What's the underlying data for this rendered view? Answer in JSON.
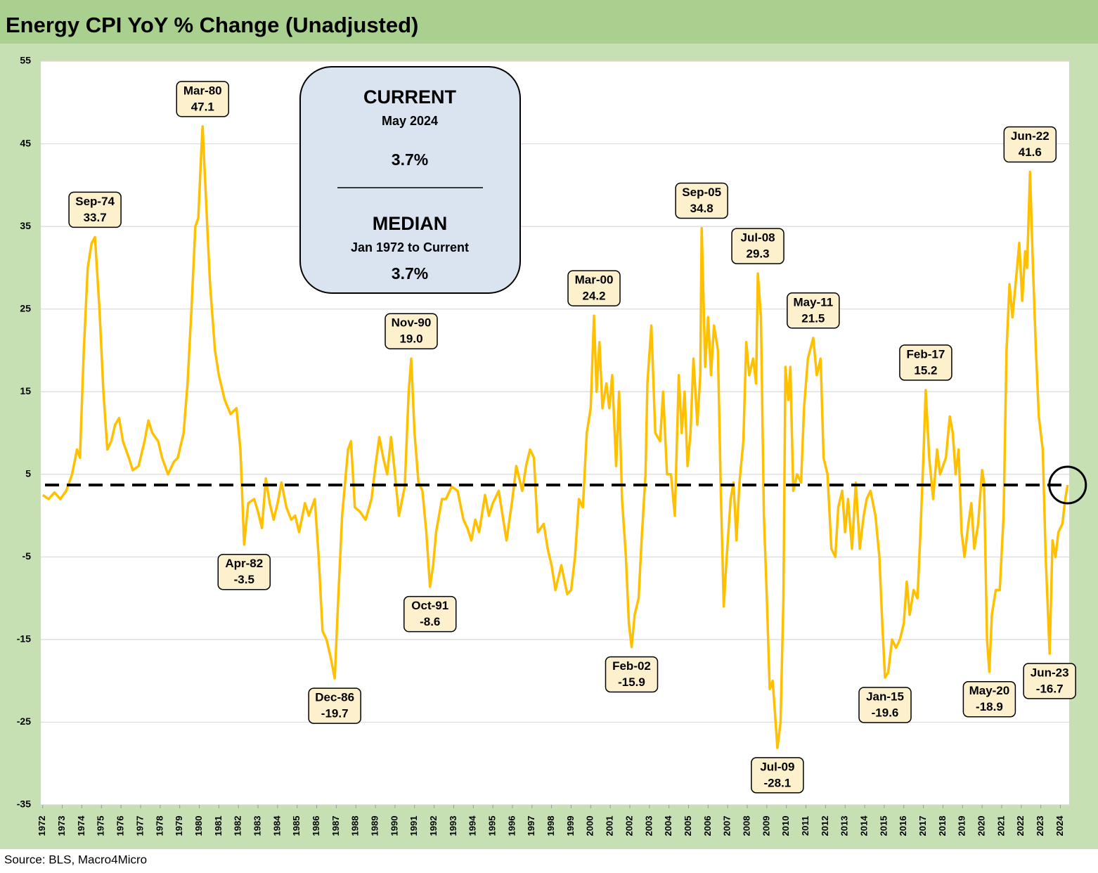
{
  "chart_data": {
    "type": "line",
    "title": "Energy CPI YoY % Change (Unadjusted)",
    "source": "Source: BLS, Macro4Micro",
    "color": "#ffc000",
    "grid": true,
    "xlim": [
      1971.9,
      2024.45
    ],
    "xticks": [
      1972,
      1973,
      1974,
      1975,
      1976,
      1977,
      1978,
      1979,
      1980,
      1981,
      1982,
      1983,
      1984,
      1985,
      1986,
      1987,
      1988,
      1989,
      1990,
      1991,
      1992,
      1993,
      1994,
      1995,
      1996,
      1997,
      1998,
      1999,
      2000,
      2001,
      2002,
      2003,
      2004,
      2005,
      2006,
      2007,
      2008,
      2009,
      2010,
      2011,
      2012,
      2013,
      2014,
      2015,
      2016,
      2017,
      2018,
      2019,
      2020,
      2021,
      2022,
      2023,
      2024
    ],
    "ylim": [
      -35,
      55
    ],
    "yticks": [
      55,
      45,
      35,
      25,
      15,
      5,
      -5,
      -15,
      -25,
      -35
    ],
    "x": [
      1972.0,
      1972.3,
      1972.6,
      1972.9,
      1973.2,
      1973.5,
      1973.75,
      1973.9,
      1974.1,
      1974.3,
      1974.5,
      1974.67,
      1974.9,
      1975.1,
      1975.3,
      1975.5,
      1975.7,
      1975.9,
      1976.1,
      1976.4,
      1976.6,
      1976.9,
      1977.2,
      1977.4,
      1977.6,
      1977.9,
      1978.1,
      1978.4,
      1978.7,
      1978.9,
      1979.2,
      1979.4,
      1979.6,
      1979.8,
      1979.95,
      1980.1,
      1980.17,
      1980.35,
      1980.55,
      1980.8,
      1981.0,
      1981.3,
      1981.6,
      1981.9,
      1982.1,
      1982.29,
      1982.5,
      1982.8,
      1983.0,
      1983.2,
      1983.4,
      1983.6,
      1983.8,
      1984.0,
      1984.2,
      1984.45,
      1984.7,
      1984.9,
      1985.1,
      1985.4,
      1985.6,
      1985.9,
      1986.1,
      1986.3,
      1986.5,
      1986.7,
      1986.92,
      1987.1,
      1987.3,
      1987.6,
      1987.75,
      1987.95,
      1988.2,
      1988.5,
      1988.8,
      1989.0,
      1989.2,
      1989.4,
      1989.6,
      1989.8,
      1990.0,
      1990.2,
      1990.5,
      1990.7,
      1990.83,
      1991.0,
      1991.2,
      1991.4,
      1991.6,
      1991.79,
      1991.95,
      1992.1,
      1992.4,
      1992.6,
      1992.9,
      1993.2,
      1993.5,
      1993.7,
      1993.9,
      1994.1,
      1994.3,
      1994.6,
      1994.8,
      1995.0,
      1995.3,
      1995.5,
      1995.7,
      1996.0,
      1996.2,
      1996.5,
      1996.7,
      1996.9,
      1997.1,
      1997.3,
      1997.6,
      1997.8,
      1998.0,
      1998.2,
      1998.5,
      1998.8,
      1999.0,
      1999.2,
      1999.4,
      1999.6,
      1999.8,
      2000.0,
      2000.17,
      2000.3,
      2000.45,
      2000.6,
      2000.8,
      2000.95,
      2001.1,
      2001.3,
      2001.45,
      2001.6,
      2001.8,
      2001.95,
      2002.09,
      2002.25,
      2002.45,
      2002.6,
      2002.8,
      2002.9,
      2003.1,
      2003.3,
      2003.55,
      2003.7,
      2003.9,
      2004.1,
      2004.3,
      2004.5,
      2004.65,
      2004.8,
      2004.95,
      2005.1,
      2005.25,
      2005.45,
      2005.6,
      2005.67,
      2005.85,
      2006.0,
      2006.15,
      2006.3,
      2006.5,
      2006.65,
      2006.8,
      2006.95,
      2007.15,
      2007.3,
      2007.45,
      2007.6,
      2007.8,
      2007.95,
      2008.1,
      2008.3,
      2008.45,
      2008.54,
      2008.7,
      2008.85,
      2009.0,
      2009.15,
      2009.3,
      2009.45,
      2009.54,
      2009.7,
      2009.85,
      2009.95,
      2010.1,
      2010.2,
      2010.35,
      2010.55,
      2010.75,
      2010.9,
      2011.1,
      2011.37,
      2011.55,
      2011.75,
      2011.9,
      2012.1,
      2012.3,
      2012.5,
      2012.65,
      2012.85,
      2013.0,
      2013.15,
      2013.35,
      2013.55,
      2013.75,
      2013.95,
      2014.1,
      2014.3,
      2014.55,
      2014.75,
      2014.9,
      2015.04,
      2015.2,
      2015.4,
      2015.6,
      2015.8,
      2016.0,
      2016.15,
      2016.3,
      2016.5,
      2016.7,
      2016.85,
      2017.0,
      2017.12,
      2017.3,
      2017.5,
      2017.7,
      2017.85,
      2018.0,
      2018.15,
      2018.35,
      2018.5,
      2018.65,
      2018.8,
      2018.95,
      2019.1,
      2019.3,
      2019.45,
      2019.6,
      2019.8,
      2020.0,
      2020.1,
      2020.25,
      2020.37,
      2020.5,
      2020.7,
      2020.9,
      2021.1,
      2021.25,
      2021.4,
      2021.55,
      2021.75,
      2021.9,
      2022.05,
      2022.2,
      2022.3,
      2022.45,
      2022.6,
      2022.75,
      2022.9,
      2023.1,
      2023.25,
      2023.45,
      2023.6,
      2023.75,
      2023.9,
      2024.1,
      2024.25,
      2024.37
    ],
    "values": [
      2.5,
      2.0,
      2.8,
      2.0,
      3.0,
      5.0,
      8.0,
      7.0,
      20,
      30,
      33,
      33.7,
      25,
      15,
      8,
      9,
      11,
      11.8,
      9,
      7,
      5.5,
      6,
      9,
      11.5,
      10,
      9,
      7,
      5,
      6.5,
      7,
      10,
      16,
      25,
      35,
      36,
      44,
      47.1,
      38,
      28,
      20,
      17,
      14,
      12.3,
      13,
      8,
      -3.5,
      1.5,
      2,
      0.5,
      -1.5,
      4.5,
      1.5,
      -0.5,
      1.5,
      4,
      1,
      -0.5,
      0,
      -2,
      1.5,
      0,
      2,
      -5,
      -14,
      -15,
      -17,
      -19.7,
      -10,
      0,
      8,
      9,
      1,
      0.5,
      -0.5,
      2,
      6,
      9.5,
      7,
      5,
      9.5,
      5,
      0,
      3.5,
      15,
      19,
      10,
      4,
      3,
      -2,
      -8.6,
      -6,
      -2,
      2,
      2,
      3.5,
      3,
      -0.5,
      -1.5,
      -3,
      -0.5,
      -2,
      2.5,
      0,
      1.5,
      3,
      0,
      -3,
      2,
      6,
      3,
      6,
      8,
      7,
      -2,
      -1,
      -4,
      -6,
      -9,
      -6,
      -9.5,
      -9,
      -5,
      2,
      1,
      10,
      13,
      24.2,
      15,
      21,
      13,
      16,
      13,
      17,
      6,
      15,
      2,
      -5,
      -13,
      -15.9,
      -12,
      -10,
      -3,
      5,
      16,
      23,
      10,
      9,
      15,
      5,
      5,
      0,
      17,
      10,
      15,
      6,
      10,
      19,
      11,
      17,
      34.8,
      18,
      24,
      17,
      23,
      20,
      3,
      -11,
      -5,
      2,
      4,
      -3,
      4,
      9,
      21,
      17,
      19,
      16,
      29.3,
      24,
      0,
      -10,
      -21,
      -20,
      -25,
      -28.1,
      -25,
      -10,
      18,
      14,
      18,
      3,
      5,
      4,
      13,
      19,
      21.5,
      17,
      19,
      7,
      5,
      -4,
      -5,
      1,
      3,
      -2,
      2,
      -4,
      4,
      -4,
      0,
      2,
      3,
      0,
      -5,
      -13,
      -19.6,
      -19,
      -15,
      -16,
      -15,
      -13,
      -8,
      -12,
      -9,
      -10,
      -2,
      7,
      15.2,
      7,
      2,
      8,
      5,
      6,
      7,
      12,
      10,
      5,
      8,
      -2,
      -5,
      -1,
      1.5,
      -4,
      -1,
      5.5,
      4,
      -15,
      -18.9,
      -12,
      -9,
      -9,
      0,
      20,
      28,
      24,
      29,
      33,
      26,
      32,
      30,
      41.6,
      30,
      20,
      12,
      8,
      -5,
      -16.7,
      -3,
      -5,
      -2,
      -1,
      2,
      3.7
    ],
    "annotations": [
      {
        "date": "Sep-74",
        "x": 1974.67,
        "value": 33.7,
        "value_label": "33.7"
      },
      {
        "date": "Mar-80",
        "x": 1980.17,
        "value": 47.1,
        "value_label": "47.1"
      },
      {
        "date": "Apr-82",
        "x": 1982.29,
        "value": -3.5,
        "value_label": "-3.5"
      },
      {
        "date": "Dec-86",
        "x": 1986.92,
        "value": -19.7,
        "value_label": "-19.7"
      },
      {
        "date": "Nov-90",
        "x": 1990.83,
        "value": 19,
        "value_label": "19.0"
      },
      {
        "date": "Oct-91",
        "x": 1991.79,
        "value": -8.6,
        "value_label": "-8.6"
      },
      {
        "date": "Mar-00",
        "x": 2000.17,
        "value": 24.2,
        "value_label": "24.2"
      },
      {
        "date": "Feb-02",
        "x": 2002.09,
        "value": -15.9,
        "value_label": "-15.9"
      },
      {
        "date": "Sep-05",
        "x": 2005.67,
        "value": 34.8,
        "value_label": "34.8"
      },
      {
        "date": "Jul-08",
        "x": 2008.54,
        "value": 29.3,
        "value_label": "29.3"
      },
      {
        "date": "Jul-09",
        "x": 2009.54,
        "value": -28.1,
        "value_label": "-28.1"
      },
      {
        "date": "May-11",
        "x": 2011.37,
        "value": 21.5,
        "value_label": "21.5"
      },
      {
        "date": "Jan-15",
        "x": 2015.04,
        "value": -19.6,
        "value_label": "-19.6"
      },
      {
        "date": "Feb-17",
        "x": 2017.12,
        "value": 15.2,
        "value_label": "15.2"
      },
      {
        "date": "May-20",
        "x": 2020.37,
        "value": -18.9,
        "value_label": "-18.9"
      },
      {
        "date": "Jun-22",
        "x": 2022.45,
        "value": 41.6,
        "value_label": "41.6"
      },
      {
        "date": "Jun-23",
        "x": 2023.45,
        "value": -16.7,
        "value_label": "-16.7"
      }
    ],
    "current_title": "CURRENT",
    "current_date": "May 2024",
    "current": {
      "value": 3.7,
      "label": "3.7%"
    },
    "median_title": "MEDIAN",
    "median_period": "Jan 1972 to Current",
    "median": {
      "value": 3.7,
      "label": "3.7%"
    }
  }
}
